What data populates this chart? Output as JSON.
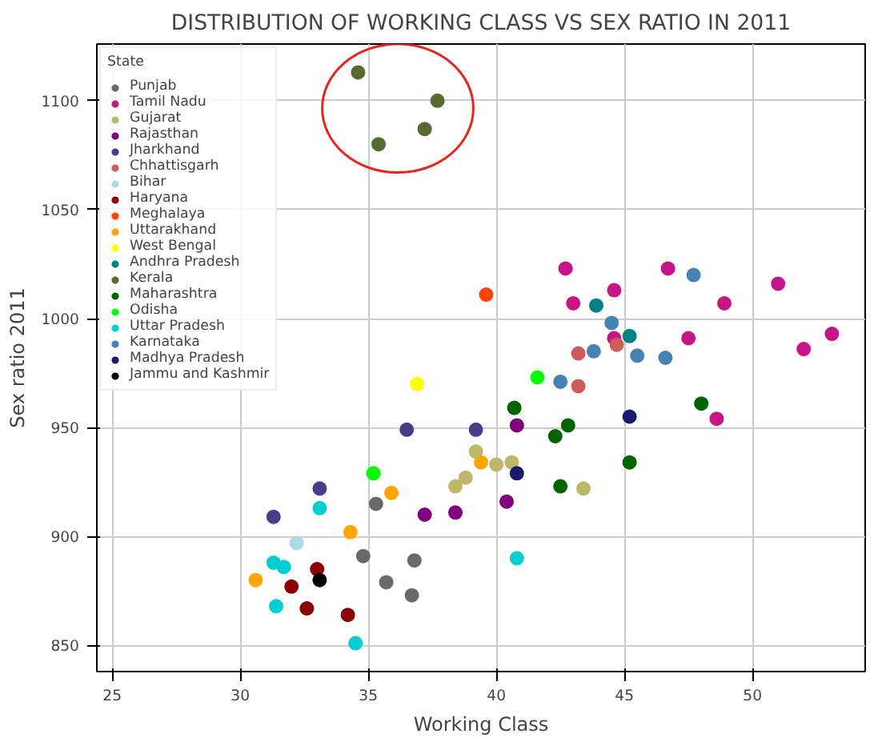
{
  "chart_data": {
    "type": "scatter",
    "title": "DISTRIBUTION OF WORKING CLASS VS SEX RATIO IN 2011",
    "xlabel": "Working Class",
    "ylabel": "Sex ratio 2011",
    "legend_title": "State",
    "xlim": [
      24.4,
      54.4
    ],
    "ylim": [
      838,
      1126
    ],
    "xticks": [
      25,
      30,
      35,
      40,
      45,
      50
    ],
    "yticks": [
      850,
      900,
      950,
      1000,
      1050,
      1100
    ],
    "grid": true,
    "legend": "top left",
    "marker": "circle",
    "series": [
      {
        "name": "Punjab",
        "color": "#696969",
        "x": [
          35.3,
          34.8,
          36.8,
          35.7,
          36.7
        ],
        "values": [
          915,
          891,
          889,
          879,
          873
        ]
      },
      {
        "name": "Tamil Nadu",
        "color": "#c71585",
        "x": [
          42.7,
          46.7,
          51.0,
          44.6,
          43.0,
          48.9,
          44.6,
          47.5,
          53.1,
          52.0,
          48.6
        ],
        "values": [
          1023,
          1023,
          1016,
          1013,
          1007,
          1007,
          991,
          991,
          993,
          986,
          954
        ]
      },
      {
        "name": "Gujarat",
        "color": "#bdb76b",
        "x": [
          39.2,
          40.0,
          40.6,
          38.8,
          38.4,
          43.4
        ],
        "values": [
          939,
          933,
          934,
          927,
          923,
          922
        ]
      },
      {
        "name": "Rajasthan",
        "color": "#800080",
        "x": [
          37.2,
          40.8,
          40.4,
          38.4
        ],
        "values": [
          910,
          951,
          916,
          911
        ]
      },
      {
        "name": "Jharkhand",
        "color": "#483d8b",
        "x": [
          36.5,
          33.1,
          31.3,
          39.2
        ],
        "values": [
          949,
          922,
          909,
          949
        ]
      },
      {
        "name": "Chhattisgarh",
        "color": "#cd5c5c",
        "x": [
          44.7,
          43.2,
          43.2
        ],
        "values": [
          988,
          984,
          969
        ]
      },
      {
        "name": "Bihar",
        "color": "#add8e6",
        "x": [
          32.2
        ],
        "values": [
          897
        ]
      },
      {
        "name": "Haryana",
        "color": "#8b0000",
        "x": [
          33.0,
          32.0,
          32.6,
          34.2
        ],
        "values": [
          885,
          877,
          867,
          864
        ]
      },
      {
        "name": "Meghalaya",
        "color": "#ff4500",
        "x": [
          39.6
        ],
        "values": [
          1011
        ]
      },
      {
        "name": "Uttarakhand",
        "color": "#ffa500",
        "x": [
          35.9,
          34.3,
          30.6,
          39.4
        ],
        "values": [
          920,
          902,
          880,
          934
        ]
      },
      {
        "name": "West Bengal",
        "color": "#ffff00",
        "x": [
          36.9
        ],
        "values": [
          970
        ]
      },
      {
        "name": "Andhra Pradesh",
        "color": "#008080",
        "x": [
          43.9,
          45.2
        ],
        "values": [
          1006,
          992
        ]
      },
      {
        "name": "Kerala",
        "color": "#556b2f",
        "x": [
          34.6,
          37.7,
          37.2,
          35.4
        ],
        "values": [
          1113,
          1100,
          1087,
          1080
        ]
      },
      {
        "name": "Maharashtra",
        "color": "#006400",
        "x": [
          48.0,
          40.7,
          42.8,
          42.3,
          45.2,
          42.5
        ],
        "values": [
          961,
          959,
          951,
          946,
          934,
          923
        ]
      },
      {
        "name": "Odisha",
        "color": "#00ff00",
        "x": [
          35.2,
          41.6
        ],
        "values": [
          929,
          973
        ]
      },
      {
        "name": "Uttar Pradesh",
        "color": "#00ced1",
        "x": [
          33.1,
          31.3,
          31.7,
          31.4,
          34.5,
          40.8
        ],
        "values": [
          913,
          888,
          886,
          868,
          851,
          890
        ]
      },
      {
        "name": "Karnataka",
        "color": "#4682b4",
        "x": [
          47.7,
          44.5,
          43.8,
          45.5,
          46.6,
          42.5
        ],
        "values": [
          1020,
          998,
          985,
          983,
          982,
          971
        ]
      },
      {
        "name": "Madhya Pradesh",
        "color": "#191970",
        "x": [
          45.2,
          40.8
        ],
        "values": [
          955,
          929
        ]
      },
      {
        "name": "Jammu and Kashmir",
        "color": "#000000",
        "x": [
          33.1
        ],
        "values": [
          880
        ]
      }
    ]
  }
}
